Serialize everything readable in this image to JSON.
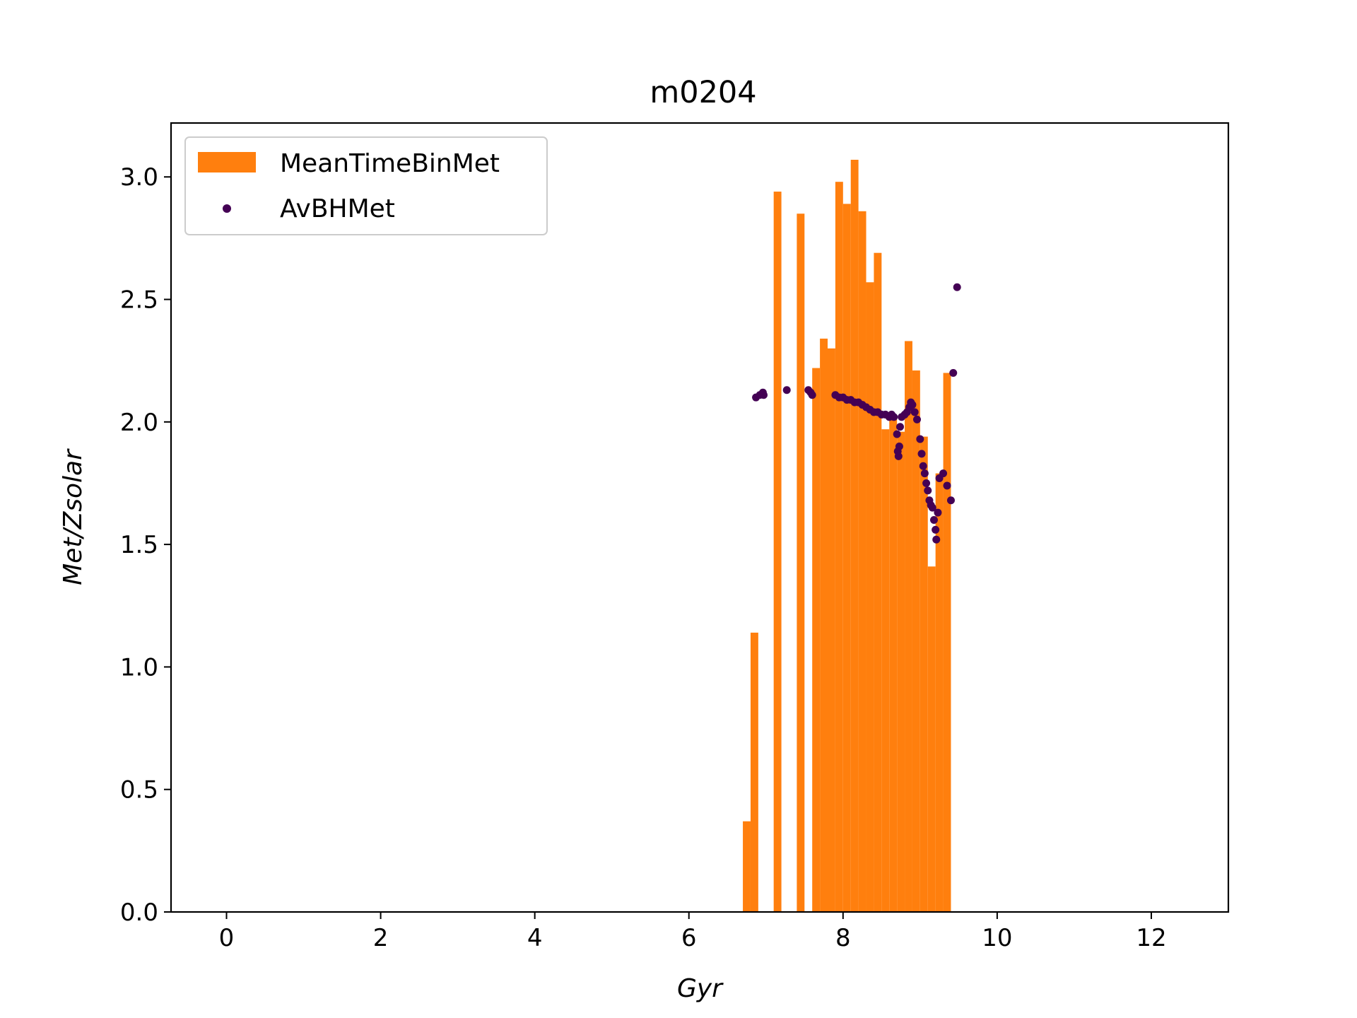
{
  "chart_data": {
    "type": "bar",
    "title": "m0204",
    "xlabel": "Gyr",
    "ylabel": "Met/Zsolar",
    "xlim": [
      -0.72,
      13.0
    ],
    "ylim": [
      0.0,
      3.22
    ],
    "x_ticks": [
      "0",
      "2",
      "4",
      "6",
      "8",
      "10",
      "12"
    ],
    "y_ticks": [
      "0.0",
      "0.5",
      "1.0",
      "1.5",
      "2.0",
      "2.5",
      "3.0"
    ],
    "grid": false,
    "legend": {
      "placement": "top-left",
      "entries": [
        "MeanTimeBinMet",
        "AvBHMet"
      ]
    },
    "bar_width": 0.1,
    "series": [
      {
        "name": "MeanTimeBinMet",
        "kind": "bar",
        "color": "#ff7f0e",
        "x": [
          6.7,
          6.8,
          7.1,
          7.4,
          7.6,
          7.7,
          7.8,
          7.9,
          8.0,
          8.1,
          8.2,
          8.3,
          8.4,
          8.5,
          8.6,
          8.7,
          8.8,
          8.9,
          9.0,
          9.1,
          9.2,
          9.3
        ],
        "values": [
          0.37,
          1.14,
          2.94,
          2.85,
          2.22,
          2.34,
          2.3,
          2.98,
          2.89,
          3.07,
          2.86,
          2.57,
          2.69,
          1.97,
          2.02,
          1.96,
          2.33,
          2.21,
          1.94,
          1.41,
          1.79,
          2.2
        ]
      },
      {
        "name": "AvBHMet",
        "kind": "scatter",
        "color": "#440154",
        "x": [
          6.87,
          6.92,
          6.96,
          6.97,
          7.27,
          7.55,
          7.58,
          7.6,
          7.9,
          7.95,
          8.0,
          8.05,
          8.1,
          8.15,
          8.2,
          8.25,
          8.3,
          8.35,
          8.4,
          8.45,
          8.5,
          8.55,
          8.6,
          8.63,
          8.66,
          8.7,
          8.71,
          8.72,
          8.73,
          8.74,
          8.76,
          8.8,
          8.83,
          8.86,
          8.88,
          8.9,
          8.93,
          8.96,
          9.0,
          9.02,
          9.04,
          9.06,
          9.08,
          9.1,
          9.12,
          9.14,
          9.16,
          9.18,
          9.2,
          9.21,
          9.23,
          9.25,
          9.3,
          9.35,
          9.4,
          9.43,
          9.48
        ],
        "values": [
          2.1,
          2.11,
          2.12,
          2.11,
          2.13,
          2.13,
          2.12,
          2.11,
          2.11,
          2.1,
          2.1,
          2.09,
          2.09,
          2.08,
          2.08,
          2.07,
          2.06,
          2.05,
          2.04,
          2.04,
          2.03,
          2.03,
          2.02,
          2.03,
          2.02,
          1.95,
          1.88,
          1.86,
          1.9,
          1.98,
          2.02,
          2.03,
          2.04,
          2.06,
          2.08,
          2.07,
          2.04,
          2.01,
          1.93,
          1.87,
          1.82,
          1.79,
          1.75,
          1.72,
          1.68,
          1.66,
          1.65,
          1.6,
          1.56,
          1.52,
          1.63,
          1.77,
          1.79,
          1.74,
          1.68,
          2.2,
          2.55
        ]
      }
    ]
  }
}
